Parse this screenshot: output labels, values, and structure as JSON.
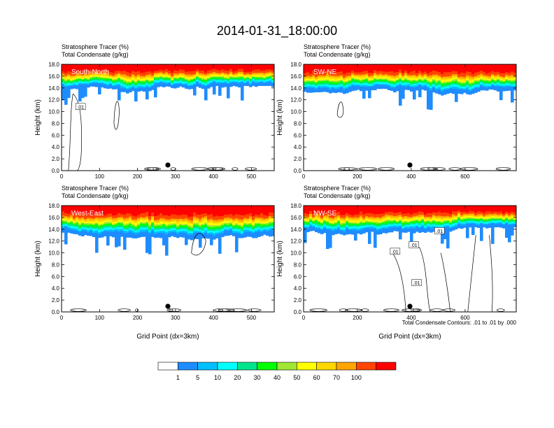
{
  "title": "2014-01-31_18:00:00",
  "footnote": "Total Condensate Contours: .01 to .01 by .000",
  "colorbar": {
    "labels": [
      "1",
      "5",
      "10",
      "20",
      "30",
      "40",
      "50",
      "60",
      "70",
      "100"
    ],
    "colors": [
      "#ffffff",
      "#1e8cff",
      "#00bfff",
      "#00ffff",
      "#00e58c",
      "#00ff00",
      "#a0e632",
      "#ffff00",
      "#ffd700",
      "#ffa500",
      "#ff4500",
      "#ff0000"
    ]
  },
  "chart_data": [
    {
      "type": "heatmap",
      "subtitle_1": "Stratosphere Tracer   (%)",
      "subtitle_2": "Total Condensate   (g/kg)",
      "panel_label": "South-North",
      "ylabel": "Height (km)",
      "xlabel": "",
      "xlim": [
        0,
        560
      ],
      "ylim": [
        0,
        18
      ],
      "xticks": [
        "0",
        "100",
        "200",
        "300",
        "400",
        "500"
      ],
      "yticks": [
        "0.0",
        "2.0",
        "4.0",
        "6.0",
        "8.0",
        "10.0",
        "12.0",
        "14.0",
        "16.0",
        "18.0"
      ],
      "marker_x": 280,
      "contour_labels": [
        ".01"
      ]
    },
    {
      "type": "heatmap",
      "subtitle_1": "Stratosphere Tracer   (%)",
      "subtitle_2": "Total Condensate   (g/kg)",
      "panel_label": "SW-NE",
      "ylabel": "Height (km)",
      "xlabel": "",
      "xlim": [
        0,
        790
      ],
      "ylim": [
        0,
        18
      ],
      "xticks": [
        "0",
        "200",
        "400",
        "600"
      ],
      "yticks": [
        "0.0",
        "2.0",
        "4.0",
        "6.0",
        "8.0",
        "10.0",
        "12.0",
        "14.0",
        "16.0",
        "18.0"
      ],
      "marker_x": 395,
      "contour_labels": []
    },
    {
      "type": "heatmap",
      "subtitle_1": "Stratosphere Tracer   (%)",
      "subtitle_2": "Total Condensate   (g/kg)",
      "panel_label": "West-East",
      "ylabel": "Height (km)",
      "xlabel": "Grid Point (dx=3km)",
      "xlim": [
        0,
        560
      ],
      "ylim": [
        0,
        18
      ],
      "xticks": [
        "0",
        "100",
        "200",
        "300",
        "400",
        "500"
      ],
      "yticks": [
        "0.0",
        "2.0",
        "4.0",
        "6.0",
        "8.0",
        "10.0",
        "12.0",
        "14.0",
        "16.0",
        "18.0"
      ],
      "marker_x": 280,
      "contour_labels": []
    },
    {
      "type": "heatmap",
      "subtitle_1": "Stratosphere Tracer   (%)",
      "subtitle_2": "Total Condensate   (g/kg)",
      "panel_label": "NW-SE",
      "ylabel": "Height (km)",
      "xlabel": "Grid Point (dx=3km)",
      "xlim": [
        0,
        790
      ],
      "ylim": [
        0,
        18
      ],
      "xticks": [
        "0",
        "200",
        "400",
        "600"
      ],
      "yticks": [
        "0.0",
        "2.0",
        "4.0",
        "6.0",
        "8.0",
        "10.0",
        "12.0",
        "14.0",
        "16.0",
        "18.0"
      ],
      "marker_x": 395,
      "contour_labels": [
        ".01",
        ".01",
        ".01",
        ".01"
      ]
    }
  ]
}
